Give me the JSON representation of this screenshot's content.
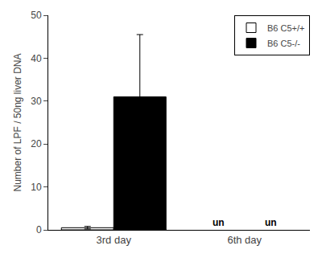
{
  "chart_data": {
    "type": "bar",
    "ylabel": "Number of LPF / 50ng liver DNA",
    "categories": [
      "3rd day",
      "6th day"
    ],
    "series": [
      {
        "name": "B6 C5+/+",
        "color": "white",
        "values": [
          0.5,
          null
        ],
        "errors": [
          0.3,
          null
        ]
      },
      {
        "name": "B6 C5-/-",
        "color": "black",
        "values": [
          31.0,
          null
        ],
        "errors": [
          14.5,
          null
        ]
      }
    ],
    "annotations": [
      {
        "text": "un",
        "x": "6th day",
        "series": "B6 C5+/+"
      },
      {
        "text": "un",
        "x": "6th day",
        "series": "B6 C5-/-"
      }
    ],
    "ylim": [
      0,
      50
    ],
    "yticks": [
      0,
      10,
      20,
      30,
      40,
      50
    ],
    "grid": false,
    "legend": "upper right"
  }
}
